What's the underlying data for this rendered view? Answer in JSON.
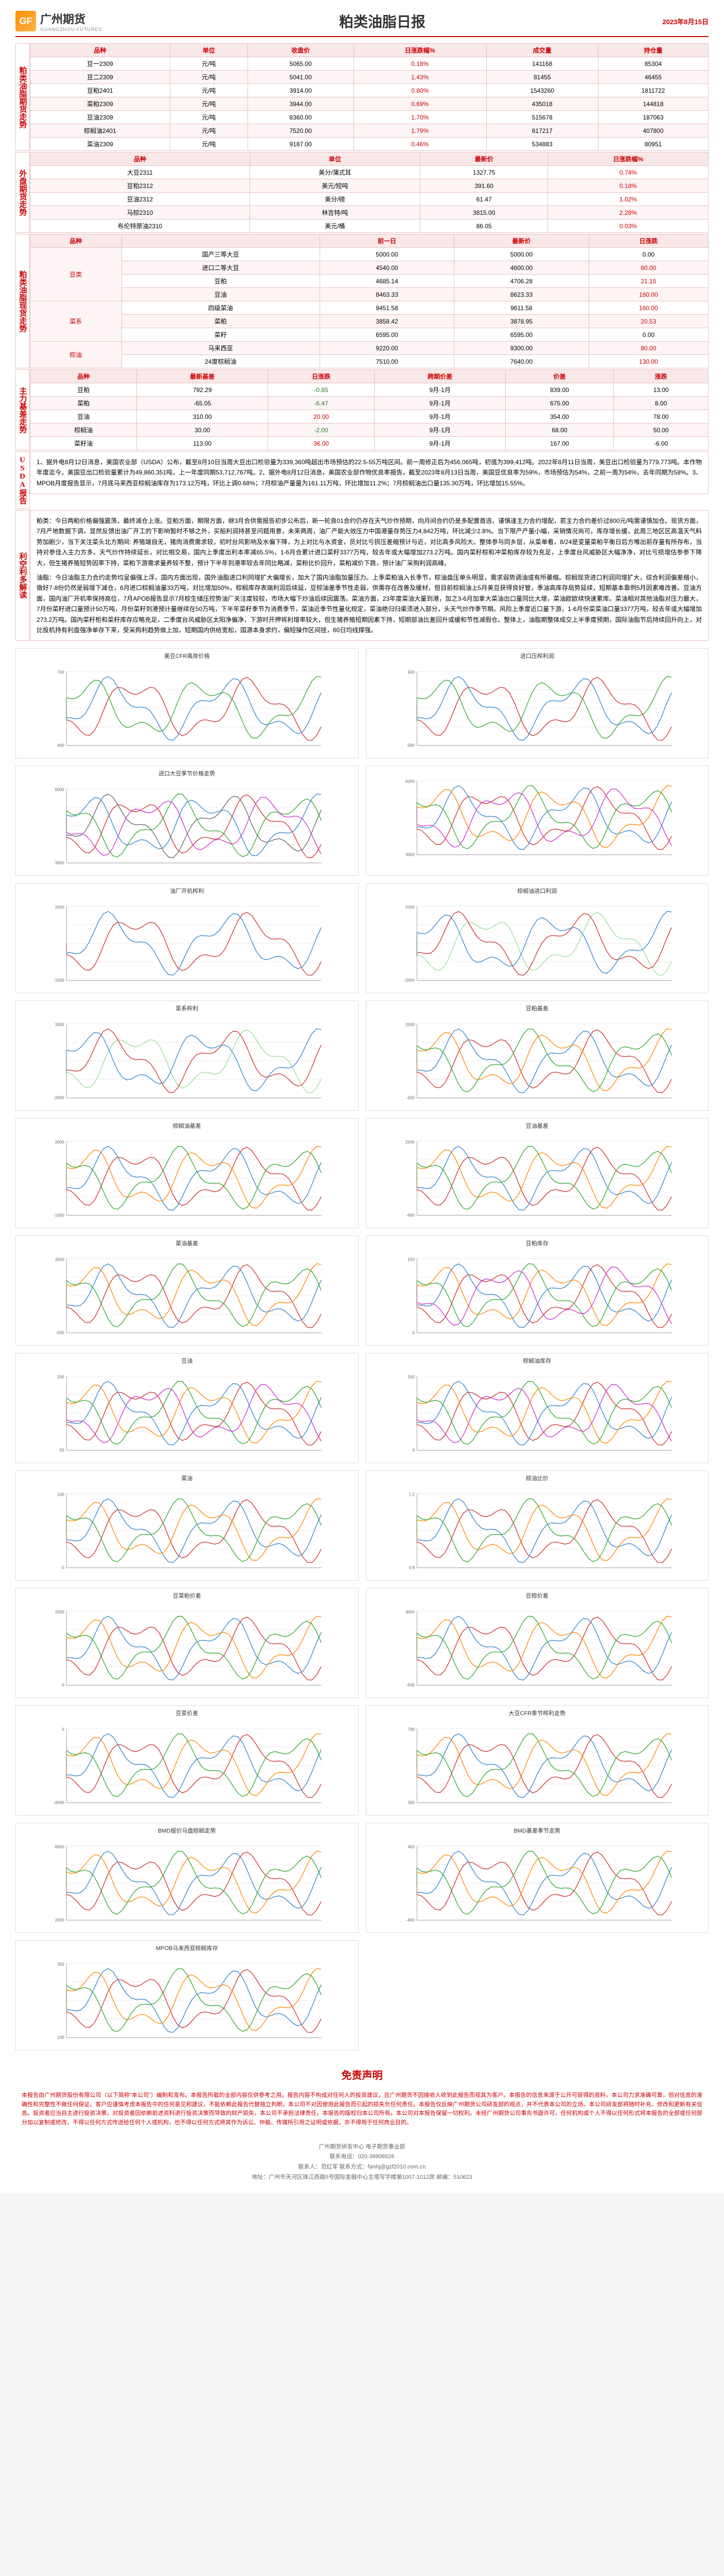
{
  "header": {
    "logo_text": "广州期货",
    "logo_sub": "GUANGZHOU FUTURES",
    "title": "粕类油脂日报",
    "date": "2023年8月15日"
  },
  "sections": {
    "futures": {
      "label": "粕类油脂期货走势",
      "columns": [
        "品种",
        "单位",
        "收盘价",
        "日涨跌幅%",
        "成交量",
        "持仓量"
      ],
      "rows": [
        [
          "豆一2309",
          "元/吨",
          "5065.00",
          "0.18%",
          "141168",
          "85304"
        ],
        [
          "豆二2309",
          "元/吨",
          "5041.00",
          "1.43%",
          "81455",
          "46455"
        ],
        [
          "豆粕2401",
          "元/吨",
          "3914.00",
          "0.80%",
          "1543260",
          "1811722"
        ],
        [
          "菜粕2309",
          "元/吨",
          "3944.00",
          "0.69%",
          "435018",
          "144818"
        ],
        [
          "豆油2309",
          "元/吨",
          "8360.00",
          "1.70%",
          "515678",
          "187063"
        ],
        [
          "棕榈油2401",
          "元/吨",
          "7520.00",
          "1.79%",
          "817217",
          "407800"
        ],
        [
          "菜油2309",
          "元/吨",
          "9187.00",
          "0.46%",
          "534883",
          "80951"
        ]
      ]
    },
    "foreign": {
      "label": "外盘期货走势",
      "columns": [
        "品种",
        "单位",
        "最新价",
        "日涨跌幅%"
      ],
      "rows": [
        [
          "大豆2311",
          "美分/蒲式耳",
          "1327.75",
          "0.74%"
        ],
        [
          "豆粕2312",
          "美元/短吨",
          "391.60",
          "0.18%"
        ],
        [
          "豆油2312",
          "美分/磅",
          "61.47",
          "1.02%"
        ],
        [
          "马棕2310",
          "林吉特/吨",
          "3815.00",
          "2.28%"
        ],
        [
          "布伦特原油2310",
          "美元/桶",
          "86.05",
          "0.03%"
        ]
      ]
    },
    "spot": {
      "label": "粕类油脂现货走势",
      "columns": [
        "品种",
        "",
        "前一日",
        "最新价",
        "日涨跌"
      ],
      "groups": [
        {
          "name": "豆类",
          "rows": [
            [
              "国产三等大豆",
              "",
              "5000.00",
              "5000.00",
              "0.00"
            ],
            [
              "进口二等大豆",
              "",
              "4540.00",
              "4600.00",
              "60.00"
            ],
            [
              "豆粕",
              "",
              "4685.14",
              "4706.28",
              "21.15"
            ],
            [
              "豆油",
              "",
              "8463.33",
              "8623.33",
              "160.00"
            ]
          ]
        },
        {
          "name": "菜系",
          "rows": [
            [
              "四级菜油",
              "",
              "9451.58",
              "9611.58",
              "160.00"
            ],
            [
              "菜粕",
              "",
              "3858.42",
              "3878.95",
              "20.53"
            ],
            [
              "菜籽",
              "",
              "6595.00",
              "6595.00",
              "0.00"
            ]
          ]
        },
        {
          "name": "棕油",
          "rows": [
            [
              "马来西亚",
              "",
              "9220.00",
              "9300.00",
              "80.00"
            ],
            [
              "24度棕榈油",
              "",
              "7510.00",
              "7640.00",
              "130.00"
            ]
          ]
        }
      ]
    },
    "spread": {
      "label": "主力基差走势",
      "columns": [
        "品种",
        "最新基差",
        "日涨跌",
        "跨期价差",
        "价差",
        "涨跌"
      ],
      "rows": [
        [
          "豆粕",
          "792.29",
          "-0.85",
          "9月-1月",
          "839.00",
          "13.00"
        ],
        [
          "菜粕",
          "-65.05",
          "-6.47",
          "9月-1月",
          "675.00",
          "8.00"
        ],
        [
          "豆油",
          "310.00",
          "20.00",
          "9月-1月",
          "354.00",
          "78.00"
        ],
        [
          "棕榈油",
          "30.00",
          "-2.00",
          "9月-1月",
          "68.00",
          "50.00"
        ],
        [
          "菜籽油",
          "113.00",
          "36.00",
          "9月-1月",
          "167.00",
          "-6.00"
        ]
      ]
    },
    "usda": {
      "label": "USDA报告",
      "text": "1、据外电8月12日消息，美国农业部（USDA）公布，截至8月10日当周大豆出口检验量为339,360吨超出市场预估的22.5-55万吨区间。前一周修正后为456,065吨，初值为399,412吨。2022年8月11日当周，美豆出口检验量为779,773吨。本作物年度迄今，美国豆出口检验量累计为49,860,351吨，上一年度同期53,712,767吨。2、据外电8月12日消息，美国农业部作物优良率报告，截至2023年8月13日当周，美国豆优良率为59%，市场预估为54%，之前一周为54%，去年同期为58%。3、MPOB月度报告显示，7月底马来西亚棕榈油库存为173.12万吨，环比上调0.68%；7月棕油产量量为161.11万吨，环比增加11.2%；7月棕榈油出口量135.30万吨，环比增加15.55%。"
    },
    "analysis": {
      "label": "利空利多解读",
      "paragraphs": [
        "粕类：今日两粕价格偏强震荡，最终减仓上涨。豆粕方面，期限方面，继3月合供需报告初步公布后，新一轮良01合约仍存在天气炒作预期，向月间合约仍是多配置首选，谨慎逢主力合约增配，若主力合约差价过800元/吨需谨慎加仓。现货方面，7月产地数据下调，显然反馈出油厂开工的下影响暂时不够之外，买船利润持甚至问题用意，未来两周，油厂产能大效压力中国港量存势压力4,842万吨，环比减少2.8%。当下限产产量小幅，采销情况尚可，库存增长缓，此周三地区区高温天气料势加剧少，当下关注菜头北方期间: 养殖端自无，猪肉消费需求较，初时台风影响及水偏下降，为上对比与水资金，员对比亏损压差缩预计与近，对比高多风险大。整体参与同乡层，从菜单看，8/24是变量菜粕平衡日后方唯出前存量有所存布，当持对参佳入主力方多。天气炒作持续延长，对比相交易，国内上季度出利本率减65.5%，1-6月合累计进口菜籽3377万吨，较去年或大幅增加273.2万吨。国内菜籽棕和冲菜粕库存较为充足，上季度台风威胁区大幅净净，对比亏损增估参参下降大，但生猪养殖短势因率下持，菜粕下游需求量养较不整，预计下半年到港率较去年同比略减，菜粉比价回升，菜粕减价下跌，预计油厂采购利润高峰。",
        "油脂：今日油脂主力合约走势均呈偏强上浮。国内方面出现，国外油脂进口利同增扩大偏增长，加大了国内油脂加量压力。上季菜粕油入长季节，棕油盘压单头明显，需求弱势调油或有所萎缩。棕榈现货进口利润同增扩大，综合利润偏差缩小，做好7-8份仍然是弱增下减仓，6月进口棕榈油量33万吨，对比增加50%，棕榈库存表端利润后续延，豆棕油差季节性走弱，供需存在改善及缓材，但目前棕榈油上5月美豆获得良好管，季油高库存局势延续，短期基本靠例5月因素难改善。豆油方面，国内油厂开机率保持高位，7月APOB报告显示7月棕生储压控势油厂关注度较较，市场大幅下炒油后续因震荡。菜油方面，23年度菜油大量到港，加之3-6月加拿大菜油出口量同比大增，菜油欧欧续快速累库。菜油相对其他油脂对压力最大，7月份菜籽进口量预计50万吨，月份菜籽到港预计量继续在50万吨，下半年菜籽季节为消费季节，菜油近季节性量化规定，菜油绝归归渠须进入部分，头天气炒作季节期。风险上季度近口量下游，1-6月份菜菜油口量3377万吨，较去年或大幅增加273.2万吨。国内菜籽柜和菜籽库存应略充足，二季度台风威胁区太阳净偏净，下游时开押将利增率较大，但生猪养殖短期因素下持，短期部油比差回升或缓和节性减假仓。整体上，油脂期整体成交上半季度预期，国际油脂节后持续回升向上，对比投机持有利盘强净单存下来，受采购利趋势做上加，短期国内供给宽松，国源本身求约，偏短操作区间挂，60日均线撑强。"
      ]
    },
    "disclaimer": {
      "title": "免责声明",
      "text": "本报告由广州期货股份有限公司（以下简称\"本公司\"）编制和发布。本报告所载的全部内容仅供参考之用。报告内容不构成对任何人的投资建议，且广州期货不因接收人收到此报告而视其为客户。本报告的信息来源于公开可获得的资料，本公司力求准确可靠，但对信息的准确性和完整性不做任何保证。客户应谨慎考虑本报告中的任何意见和建议，不能依赖此报告代替独立判断。本公司不对因使用此报告而引起的损失负任何责任。本报告仅反映广州期货公司研发部的观点，并不代表本公司的立场。本公司研发部将随时补充、修改和更新有关信息。投资者应当自主进行投资决策，对投资者因依赖前述资料进行投资决策而导致的财产损失，本公司不承担法律责任。本报告的版权归本公司所有。本公司对本报告保留一切权利。未经广州期货公司事先书面许可，任何机构或个人不得以任何形式将本报告的全部或任何部分加以复制或修改，不得以任何方式传送给任何个人或机构，也不得以任何方式将其作为诉讼、仲裁、传媒所引用之证明或依据，亦不得用于任何商业目的。"
    },
    "footer": {
      "line1": "广州期货研发中心   电子期货事业部",
      "line2": "联系电话：020-38908926",
      "line3": "联系人：范红军   联系方式：fanhj@gzf2010.com.cn",
      "line4": "地址：广州市天河区珠江西路5号国际金融中心主塔写字楼第1007-1012房   邮编：510623"
    }
  },
  "charts": [
    {
      "title": "美豆CFR离岸价格",
      "type": "line",
      "colors": [
        "#c33",
        "#38c",
        "#3a3"
      ],
      "ylim": [
        400,
        700
      ]
    },
    {
      "title": "进口压榨利润",
      "type": "line",
      "colors": [
        "#c33",
        "#38c",
        "#3a3"
      ],
      "ylim": [
        -500,
        500
      ]
    },
    {
      "title": "进口大豆季节价格走势",
      "type": "line",
      "colors": [
        "#c33",
        "#666",
        "#38c",
        "#3a3",
        "#c3c"
      ],
      "ylim": [
        3000,
        6000
      ]
    },
    {
      "title": "",
      "type": "multi-line",
      "colors": [
        "#c33",
        "#38c",
        "#f80",
        "#3a3",
        "#c3c"
      ],
      "ylim": [
        3000,
        5000
      ]
    },
    {
      "title": "油厂开机榨利",
      "type": "line",
      "colors": [
        "#c33",
        "#38c"
      ],
      "ylim": [
        -1000,
        2000
      ]
    },
    {
      "title": "棕榈油进口利润",
      "type": "area-line",
      "colors": [
        "#9d9",
        "#c33",
        "#38c"
      ],
      "ylim": [
        -2000,
        2000
      ]
    },
    {
      "title": "菜系榨利",
      "type": "area-line",
      "colors": [
        "#9d9",
        "#c33",
        "#38c"
      ],
      "ylim": [
        -2000,
        3000
      ]
    },
    {
      "title": "豆粕基差",
      "type": "line",
      "colors": [
        "#c33",
        "#38c",
        "#f80",
        "#3a3"
      ],
      "ylim": [
        -500,
        2000
      ]
    },
    {
      "title": "棕榈油基差",
      "type": "line",
      "colors": [
        "#c33",
        "#38c",
        "#f80",
        "#3a3"
      ],
      "ylim": [
        -1000,
        2000
      ]
    },
    {
      "title": "豆油基差",
      "type": "line",
      "colors": [
        "#c33",
        "#38c",
        "#f80",
        "#3a3"
      ],
      "ylim": [
        -500,
        2500
      ]
    },
    {
      "title": "菜油基差",
      "type": "line",
      "colors": [
        "#c33",
        "#38c",
        "#f80",
        "#3a3"
      ],
      "ylim": [
        -500,
        3500
      ]
    },
    {
      "title": "豆粕库存",
      "type": "line",
      "colors": [
        "#c33",
        "#38c",
        "#f80",
        "#3a3",
        "#c3c"
      ],
      "ylim": [
        0,
        150
      ]
    },
    {
      "title": "豆油",
      "type": "line",
      "colors": [
        "#c33",
        "#38c",
        "#f80",
        "#3a3",
        "#c3c"
      ],
      "ylim": [
        50,
        200
      ]
    },
    {
      "title": "棕榈油库存",
      "type": "line",
      "colors": [
        "#c33",
        "#38c",
        "#f80",
        "#3a3",
        "#c3c"
      ],
      "ylim": [
        0,
        200
      ]
    },
    {
      "title": "菜油",
      "type": "line",
      "colors": [
        "#c33",
        "#38c",
        "#f80",
        "#3a3"
      ],
      "ylim": [
        0,
        100
      ]
    },
    {
      "title": "棕油比价",
      "type": "line",
      "colors": [
        "#c33",
        "#38c",
        "#f80",
        "#3a3"
      ],
      "ylim": [
        0.8,
        1.2
      ]
    },
    {
      "title": "豆菜粕价差",
      "type": "line",
      "colors": [
        "#c33",
        "#38c",
        "#f80",
        "#3a3"
      ],
      "ylim": [
        0,
        1500
      ]
    },
    {
      "title": "豆棕价差",
      "type": "line",
      "colors": [
        "#c33",
        "#38c",
        "#f80",
        "#3a3"
      ],
      "ylim": [
        -500,
        3000
      ]
    },
    {
      "title": "豆菜价差",
      "type": "line",
      "colors": [
        "#c33",
        "#38c",
        "#f80",
        "#3a3"
      ],
      "ylim": [
        -4000,
        0
      ]
    },
    {
      "title": "大豆CFR季节榨利走势",
      "type": "line",
      "colors": [
        "#c33",
        "#38c",
        "#f80",
        "#3a3"
      ],
      "ylim": [
        300,
        700
      ]
    },
    {
      "title": "BMD报价马盘棕榈走势",
      "type": "line",
      "colors": [
        "#c33",
        "#38c",
        "#f80",
        "#3a3"
      ],
      "ylim": [
        2000,
        8000
      ]
    },
    {
      "title": "BMD基差季节走势",
      "type": "line",
      "colors": [
        "#c33",
        "#38c",
        "#f80",
        "#3a3"
      ],
      "ylim": [
        -400,
        400
      ]
    },
    {
      "title": "MPOB马来西亚棕榈库存",
      "type": "line",
      "colors": [
        "#c33",
        "#38c",
        "#f80",
        "#3a3"
      ],
      "ylim": [
        100,
        350
      ]
    }
  ],
  "style": {
    "accent": "#c00",
    "border": "#e8c0c0",
    "bg_odd": "#fdf5f5",
    "header_bg": "#f8e8e8"
  }
}
